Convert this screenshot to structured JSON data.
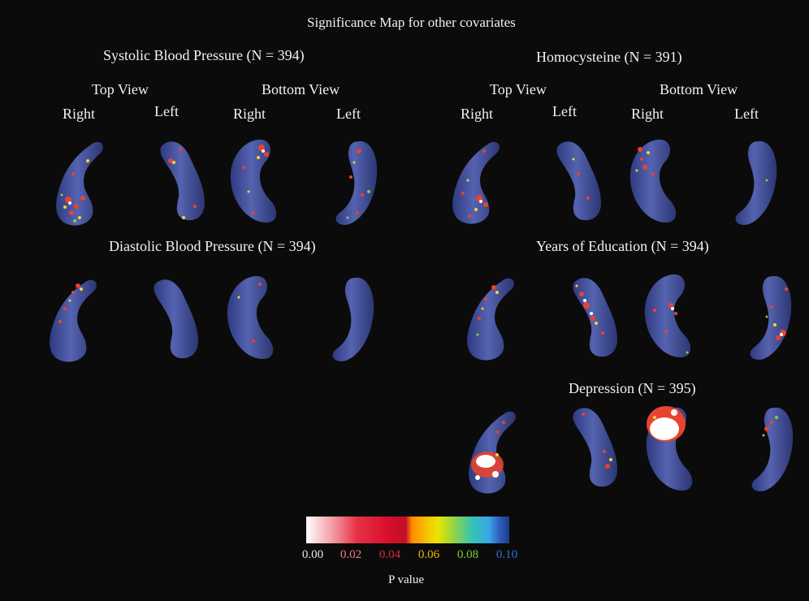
{
  "title": "Significance Map for other covariates",
  "sections": {
    "sbp": "Systolic Blood Pressure (N = 394)",
    "hcy": "Homocysteine (N = 391)",
    "dbp": "Diastolic Blood Pressure (N = 394)",
    "edu": "Years of Education (N = 394)",
    "dep": "Depression (N = 395)"
  },
  "views": {
    "top": "Top View",
    "bottom": "Bottom View"
  },
  "sides": {
    "right": "Right",
    "left": "Left"
  },
  "colorbar": {
    "label": "P value",
    "ticks": [
      "0.00",
      "0.02",
      "0.04",
      "0.06",
      "0.08",
      "0.10"
    ],
    "tick_colors": [
      "#e8e8e8",
      "#f07b86",
      "#e0283e",
      "#f0b400",
      "#7fcf3c",
      "#2f73d6"
    ],
    "surface_color": "#4a57a6"
  }
}
